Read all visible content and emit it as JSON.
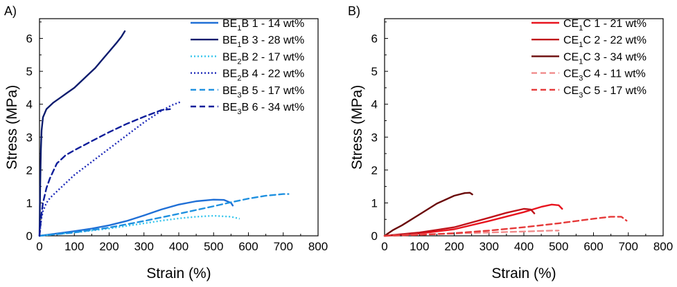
{
  "chart_data": [
    {
      "type": "line",
      "panel_label": "A)",
      "xlabel": "Strain (%)",
      "ylabel": "Stress (MPa)",
      "xlim": [
        0,
        800
      ],
      "ylim": [
        0,
        6.6
      ],
      "xticks": [
        0,
        100,
        200,
        300,
        400,
        500,
        600,
        700,
        800
      ],
      "yticks": [
        0,
        1,
        2,
        3,
        4,
        5,
        6
      ],
      "grid": false,
      "legend_position": "top-right",
      "series": [
        {
          "base": "BE",
          "sub": "1",
          "suffix": "B 1 - 14 wt%",
          "color": "#1f6fd6",
          "dash": "solid",
          "x": [
            0,
            50,
            100,
            150,
            200,
            250,
            300,
            350,
            400,
            450,
            500,
            530,
            550,
            555
          ],
          "y": [
            0,
            0.07,
            0.14,
            0.22,
            0.32,
            0.45,
            0.62,
            0.8,
            0.95,
            1.05,
            1.1,
            1.09,
            1.0,
            0.92
          ]
        },
        {
          "base": "BE",
          "sub": "1",
          "suffix": "B 3 - 28 wt%",
          "color": "#0b1c6e",
          "dash": "solid",
          "x": [
            0,
            2,
            4,
            6,
            10,
            20,
            40,
            60,
            80,
            100,
            120,
            140,
            160,
            180,
            200,
            220,
            235,
            245
          ],
          "y": [
            0,
            1.5,
            2.6,
            3.2,
            3.6,
            3.85,
            4.05,
            4.2,
            4.35,
            4.5,
            4.7,
            4.9,
            5.1,
            5.35,
            5.6,
            5.85,
            6.05,
            6.22
          ]
        },
        {
          "base": "BE",
          "sub": "2",
          "suffix": "B 2 - 17 wt%",
          "color": "#33c4ec",
          "dash": "dot",
          "x": [
            0,
            50,
            100,
            150,
            200,
            250,
            300,
            350,
            400,
            450,
            500,
            550,
            575
          ],
          "y": [
            0,
            0.05,
            0.1,
            0.16,
            0.22,
            0.3,
            0.38,
            0.46,
            0.53,
            0.58,
            0.61,
            0.58,
            0.52
          ]
        },
        {
          "base": "BE",
          "sub": "2",
          "suffix": "B 4 - 22 wt%",
          "color": "#1a27b8",
          "dash": "dot",
          "x": [
            0,
            5,
            10,
            20,
            30,
            50,
            75,
            100,
            150,
            200,
            250,
            300,
            350,
            380,
            405
          ],
          "y": [
            0,
            0.5,
            0.75,
            1.0,
            1.15,
            1.35,
            1.6,
            1.85,
            2.25,
            2.65,
            3.05,
            3.45,
            3.8,
            3.97,
            4.07
          ]
        },
        {
          "base": "BE",
          "sub": "3",
          "suffix": "B 5 - 17 wt%",
          "color": "#1e90e0",
          "dash": "dash",
          "x": [
            0,
            100,
            200,
            300,
            400,
            500,
            550,
            600,
            650,
            700,
            715
          ],
          "y": [
            0,
            0.1,
            0.25,
            0.45,
            0.67,
            0.9,
            1.02,
            1.13,
            1.22,
            1.27,
            1.27
          ]
        },
        {
          "base": "BE",
          "sub": "3",
          "suffix": "B 6 - 34 wt%",
          "color": "#0d1d9a",
          "dash": "dash",
          "x": [
            0,
            5,
            10,
            20,
            30,
            50,
            75,
            100,
            150,
            200,
            250,
            300,
            350,
            375
          ],
          "y": [
            0,
            0.6,
            1.0,
            1.45,
            1.75,
            2.2,
            2.45,
            2.6,
            2.88,
            3.15,
            3.4,
            3.62,
            3.82,
            3.85
          ]
        }
      ]
    },
    {
      "type": "line",
      "panel_label": "B)",
      "xlabel": "Strain (%)",
      "ylabel": "Stress (MPa)",
      "xlim": [
        0,
        800
      ],
      "ylim": [
        0,
        6.6
      ],
      "xticks": [
        0,
        100,
        200,
        300,
        400,
        500,
        600,
        700,
        800
      ],
      "yticks": [
        0,
        1,
        2,
        3,
        4,
        5,
        6
      ],
      "grid": false,
      "legend_position": "top-right",
      "series": [
        {
          "base": "CE",
          "sub": "1",
          "suffix": "C 1 - 21 wt%",
          "color": "#e8141e",
          "dash": "solid",
          "x": [
            0,
            100,
            200,
            300,
            400,
            450,
            480,
            500,
            510
          ],
          "y": [
            0,
            0.07,
            0.2,
            0.45,
            0.72,
            0.88,
            0.95,
            0.93,
            0.82
          ]
        },
        {
          "base": "CE",
          "sub": "1",
          "suffix": "C 2 - 22 wt%",
          "color": "#c0121a",
          "dash": "solid",
          "x": [
            0,
            100,
            200,
            300,
            350,
            400,
            420,
            430
          ],
          "y": [
            0,
            0.1,
            0.26,
            0.55,
            0.7,
            0.82,
            0.8,
            0.68
          ]
        },
        {
          "base": "CE",
          "sub": "1",
          "suffix": "C 3 - 34 wt%",
          "color": "#6a0808",
          "dash": "solid",
          "x": [
            0,
            25,
            50,
            100,
            150,
            200,
            230,
            245,
            252
          ],
          "y": [
            0,
            0.18,
            0.32,
            0.65,
            0.98,
            1.22,
            1.3,
            1.31,
            1.26
          ]
        },
        {
          "base": "CE",
          "sub": "3",
          "suffix": "C 4 - 11 wt%",
          "color": "#f08a8a",
          "dash": "dash",
          "x": [
            0,
            100,
            200,
            300,
            400,
            450,
            480,
            500
          ],
          "y": [
            0,
            0.04,
            0.07,
            0.1,
            0.13,
            0.15,
            0.16,
            0.16
          ]
        },
        {
          "base": "CE",
          "sub": "3",
          "suffix": "C 5 - 17 wt%",
          "color": "#e53838",
          "dash": "dash",
          "x": [
            0,
            100,
            200,
            300,
            400,
            500,
            600,
            650,
            680,
            695
          ],
          "y": [
            0,
            0.03,
            0.08,
            0.16,
            0.26,
            0.38,
            0.52,
            0.58,
            0.58,
            0.46
          ]
        }
      ]
    }
  ]
}
